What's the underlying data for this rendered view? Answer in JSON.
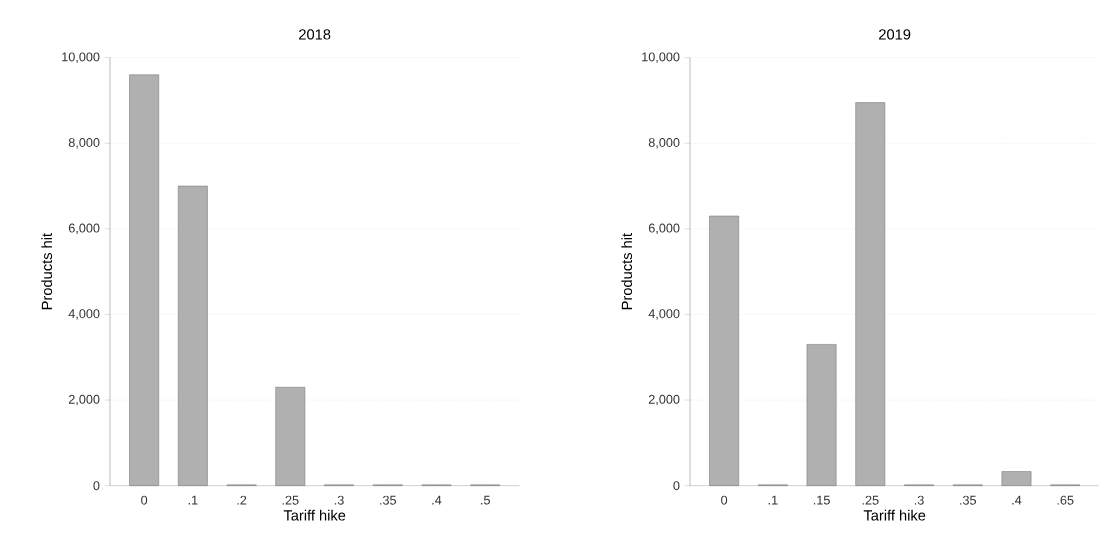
{
  "chart_data": [
    {
      "type": "bar",
      "title": "2018",
      "xlabel": "Tariff hike",
      "ylabel": "Products hit",
      "categories": [
        "0",
        ".1",
        ".2",
        ".25",
        ".3",
        ".35",
        ".4",
        ".5"
      ],
      "values": [
        9600,
        7000,
        20,
        2300,
        20,
        20,
        20,
        20
      ],
      "color": "#b0b0b0",
      "ylim": [
        0,
        10000
      ],
      "yticks": [
        {
          "value": 0,
          "label": "0"
        },
        {
          "value": 2000,
          "label": "2,000"
        },
        {
          "value": 4000,
          "label": "4,000"
        },
        {
          "value": 6000,
          "label": "6,000"
        },
        {
          "value": 8000,
          "label": "8,000"
        },
        {
          "value": 10000,
          "label": "10,000"
        }
      ],
      "grid": "y"
    },
    {
      "type": "bar",
      "title": "2019",
      "xlabel": "Tariff hike",
      "ylabel": "Products hit",
      "categories": [
        "0",
        ".1",
        ".15",
        ".25",
        ".3",
        ".35",
        ".4",
        ".65"
      ],
      "values": [
        6300,
        20,
        3300,
        8950,
        20,
        20,
        330,
        20
      ],
      "color": "#b0b0b0",
      "ylim": [
        0,
        10000
      ],
      "yticks": [
        {
          "value": 0,
          "label": "0"
        },
        {
          "value": 2000,
          "label": "2,000"
        },
        {
          "value": 4000,
          "label": "4,000"
        },
        {
          "value": 6000,
          "label": "6,000"
        },
        {
          "value": 8000,
          "label": "8,000"
        },
        {
          "value": 10000,
          "label": "10,000"
        }
      ],
      "grid": "y"
    }
  ]
}
